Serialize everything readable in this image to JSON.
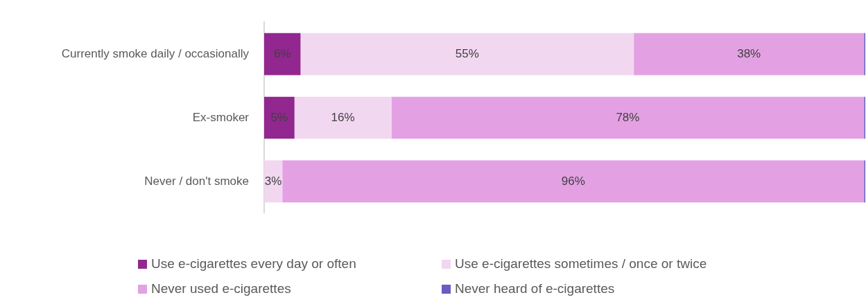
{
  "chart_data": {
    "type": "bar",
    "orientation": "horizontal",
    "stacked": true,
    "categories": [
      "Currently smoke daily / occasionally",
      "Ex-smoker",
      "Never / don't smoke"
    ],
    "xlim": [
      0,
      99.2
    ],
    "tick_labels": "y",
    "legend": "bottom",
    "grid": false,
    "series": [
      {
        "name": "Use e-cigarettes every day or often",
        "color": "#92278f",
        "values": [
          6,
          5,
          0
        ],
        "value_labels": [
          "6%",
          "5%",
          null
        ]
      },
      {
        "name": "Use e-cigarettes sometimes / once or twice",
        "color": "#f2d7f1",
        "values": [
          55,
          16,
          3
        ],
        "value_labels": [
          "55%",
          "16%",
          "3%"
        ]
      },
      {
        "name": "Never used e-cigarettes",
        "color": "#e3a1e3",
        "values": [
          38,
          78,
          96
        ],
        "value_labels": [
          "38%",
          "78%",
          "96%"
        ]
      },
      {
        "name": "Never heard of e-cigarettes",
        "color": "#6a5cc0",
        "values": [
          0.2,
          0.2,
          0.2
        ],
        "value_labels": [
          null,
          null,
          null
        ]
      }
    ]
  }
}
